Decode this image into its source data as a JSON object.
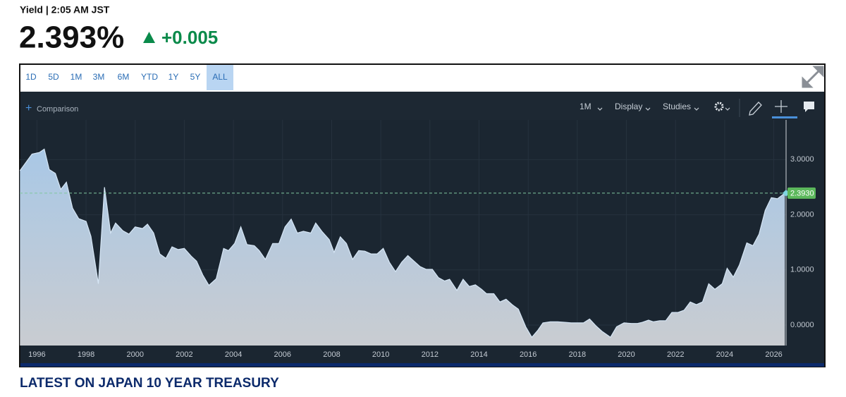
{
  "header": {
    "title": "Yield | 2:05 AM JST",
    "price": "2.393%",
    "change": "+0.005"
  },
  "ranges": [
    "1D",
    "5D",
    "1M",
    "3M",
    "6M",
    "YTD",
    "1Y",
    "5Y",
    "ALL"
  ],
  "selected_range": "ALL",
  "toolbar": {
    "comparison": "Comparison",
    "interval": "1M",
    "display": "Display",
    "studies": "Studies"
  },
  "chart_data": {
    "type": "area",
    "color": "#a9c8e6",
    "grid": true,
    "x": [
      1995.31,
      1995.8,
      1996.1,
      1996.3,
      1996.5,
      1996.75,
      1996.97,
      1997.2,
      1997.45,
      1997.7,
      1998.0,
      1998.2,
      1998.5,
      1998.75,
      1999.0,
      1999.2,
      1999.5,
      1999.75,
      2000.0,
      2000.3,
      2000.5,
      2000.75,
      2001.0,
      2001.25,
      2001.5,
      2001.75,
      2002.0,
      2002.3,
      2002.5,
      2002.75,
      2003.0,
      2003.3,
      2003.6,
      2003.8,
      2004.05,
      2004.3,
      2004.55,
      2004.85,
      2005.05,
      2005.3,
      2005.6,
      2005.85,
      2006.1,
      2006.35,
      2006.6,
      2006.85,
      2007.15,
      2007.35,
      2007.6,
      2007.9,
      2008.1,
      2008.35,
      2008.6,
      2008.85,
      2009.1,
      2009.35,
      2009.6,
      2009.85,
      2010.1,
      2010.35,
      2010.6,
      2010.85,
      2011.1,
      2011.35,
      2011.6,
      2011.85,
      2012.1,
      2012.35,
      2012.6,
      2012.8,
      2013.1,
      2013.35,
      2013.6,
      2013.85,
      2014.1,
      2014.3,
      2014.6,
      2014.85,
      2015.1,
      2015.35,
      2015.6,
      2015.9,
      2016.15,
      2016.4,
      2016.6,
      2016.9,
      2017.2,
      2017.5,
      2017.75,
      2018.05,
      2018.25,
      2018.5,
      2018.75,
      2019.0,
      2019.35,
      2019.6,
      2019.9,
      2020.2,
      2020.45,
      2020.65,
      2020.9,
      2021.1,
      2021.35,
      2021.6,
      2021.85,
      2022.1,
      2022.35,
      2022.6,
      2022.85,
      2023.1,
      2023.35,
      2023.6,
      2023.9,
      2024.1,
      2024.35,
      2024.6,
      2024.9,
      2025.15,
      2025.4,
      2025.65,
      2025.9,
      2026.15,
      2026.45
    ],
    "values": [
      2.8,
      3.1,
      3.13,
      3.19,
      2.82,
      2.75,
      2.46,
      2.59,
      2.12,
      1.93,
      1.88,
      1.61,
      0.75,
      2.5,
      1.67,
      1.85,
      1.71,
      1.65,
      1.78,
      1.75,
      1.83,
      1.67,
      1.29,
      1.21,
      1.42,
      1.37,
      1.39,
      1.24,
      1.16,
      0.91,
      0.72,
      0.84,
      1.39,
      1.35,
      1.48,
      1.78,
      1.46,
      1.44,
      1.35,
      1.19,
      1.48,
      1.48,
      1.78,
      1.92,
      1.67,
      1.7,
      1.67,
      1.85,
      1.7,
      1.55,
      1.32,
      1.6,
      1.48,
      1.19,
      1.35,
      1.34,
      1.29,
      1.29,
      1.39,
      1.14,
      0.97,
      1.14,
      1.26,
      1.16,
      1.06,
      1.01,
      1.01,
      0.86,
      0.8,
      0.83,
      0.63,
      0.83,
      0.7,
      0.73,
      0.65,
      0.57,
      0.57,
      0.42,
      0.47,
      0.37,
      0.29,
      -0.03,
      -0.22,
      -0.09,
      0.04,
      0.06,
      0.06,
      0.05,
      0.04,
      0.04,
      0.04,
      0.11,
      -0.01,
      -0.11,
      -0.22,
      -0.03,
      0.04,
      0.03,
      0.03,
      0.05,
      0.09,
      0.06,
      0.08,
      0.08,
      0.23,
      0.23,
      0.27,
      0.42,
      0.37,
      0.42,
      0.75,
      0.65,
      0.75,
      1.03,
      0.87,
      1.09,
      1.49,
      1.44,
      1.65,
      2.08,
      2.31,
      2.29,
      2.393
    ],
    "xlim": [
      1995.3,
      2026.5
    ],
    "ylim": [
      -0.37,
      3.72
    ],
    "xticks": [
      1996,
      1998,
      2000,
      2002,
      2004,
      2006,
      2008,
      2010,
      2012,
      2014,
      2016,
      2018,
      2020,
      2022,
      2024,
      2026
    ],
    "yticks": [
      {
        "value": 0,
        "label": "0.0000"
      },
      {
        "value": 1,
        "label": "1.0000"
      },
      {
        "value": 2,
        "label": "2.0000"
      },
      {
        "value": 3,
        "label": "3.0000"
      }
    ],
    "reference_line": {
      "value": 2.393,
      "label": "2.3930"
    }
  },
  "footer": {
    "heading": "LATEST ON JAPAN 10 YEAR TREASURY"
  }
}
